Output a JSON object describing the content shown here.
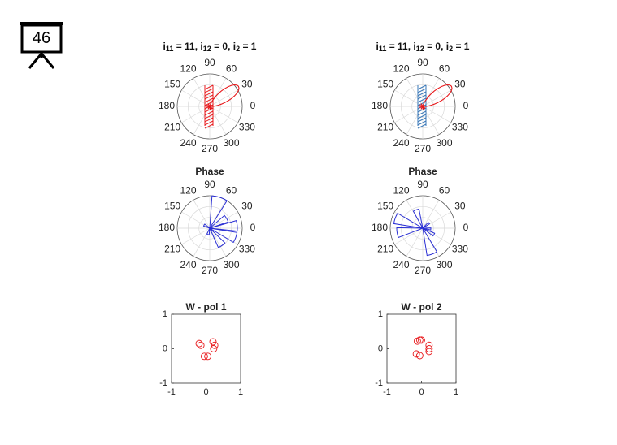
{
  "slide": {
    "number": "46"
  },
  "colors": {
    "red": "#e8191c",
    "blue": "#2a2fd4",
    "lightblue": "#3a78b8",
    "grid": "#d9d9d9",
    "axis": "#555555"
  },
  "chart_data": [
    {
      "type": "polar-pattern",
      "title_parts": [
        "i",
        "11",
        " = 11, i",
        "12",
        " = 0, i",
        "2",
        " = 1"
      ],
      "angle_ticks": [
        "0",
        "30",
        "60",
        "90",
        "120",
        "150",
        "180",
        "210",
        "240",
        "270",
        "300",
        "330"
      ],
      "lobe_direction_deg": 35,
      "lobe_color": "red",
      "hatch_color": "red"
    },
    {
      "type": "polar-pattern",
      "title_parts": [
        "i",
        "11",
        " = 11, i",
        "12",
        " = 0, i",
        "2",
        " = 1"
      ],
      "angle_ticks": [
        "0",
        "30",
        "60",
        "90",
        "120",
        "150",
        "180",
        "210",
        "240",
        "270",
        "300",
        "330"
      ],
      "lobe_direction_deg": 35,
      "lobe_color": "red",
      "hatch_color": "lightblue"
    },
    {
      "type": "polar-rose",
      "title": "Phase",
      "angle_ticks": [
        "0",
        "30",
        "60",
        "90",
        "120",
        "150",
        "180",
        "210",
        "240",
        "270",
        "300",
        "330"
      ],
      "bins": [
        {
          "center": 72,
          "width": 28,
          "r": 1.0
        },
        {
          "center": 30,
          "width": 22,
          "r": 0.6
        },
        {
          "center": 5,
          "width": 22,
          "r": 0.85
        },
        {
          "center": 340,
          "width": 22,
          "r": 0.85
        },
        {
          "center": 305,
          "width": 22,
          "r": 0.65
        },
        {
          "center": 255,
          "width": 20,
          "r": 0.2
        },
        {
          "center": 150,
          "width": 20,
          "r": 0.2
        }
      ]
    },
    {
      "type": "polar-rose",
      "title": "Phase",
      "angle_ticks": [
        "0",
        "30",
        "60",
        "90",
        "120",
        "150",
        "180",
        "210",
        "240",
        "270",
        "300",
        "330"
      ],
      "bins": [
        {
          "center": 160,
          "width": 22,
          "r": 0.9
        },
        {
          "center": 190,
          "width": 22,
          "r": 0.8
        },
        {
          "center": 110,
          "width": 18,
          "r": 0.6
        },
        {
          "center": 290,
          "width": 22,
          "r": 0.85
        },
        {
          "center": 330,
          "width": 14,
          "r": 0.4
        },
        {
          "center": 40,
          "width": 14,
          "r": 0.25
        },
        {
          "center": 355,
          "width": 14,
          "r": 0.25
        }
      ]
    },
    {
      "type": "scatter",
      "title": "W - pol 1",
      "xlim": [
        -1,
        1
      ],
      "ylim": [
        -1,
        1
      ],
      "xticks": [
        "-1",
        "0",
        "1"
      ],
      "yticks": [
        "-1",
        "0",
        "1"
      ],
      "x": [
        -0.2,
        -0.15,
        -0.05,
        0.05,
        0.2,
        0.25,
        0.22
      ],
      "y": [
        0.15,
        0.1,
        -0.22,
        -0.22,
        0.2,
        0.1,
        0.0
      ]
    },
    {
      "type": "scatter",
      "title": "W - pol 2",
      "xlim": [
        -1,
        1
      ],
      "ylim": [
        -1,
        1
      ],
      "xticks": [
        "-1",
        "0",
        "1"
      ],
      "yticks": [
        "-1",
        "0",
        "1"
      ],
      "x": [
        -0.12,
        0.0,
        -0.05,
        -0.15,
        -0.05,
        0.22,
        0.22,
        0.22
      ],
      "y": [
        0.22,
        0.25,
        0.25,
        -0.15,
        -0.2,
        0.1,
        0.0,
        -0.08
      ]
    }
  ]
}
